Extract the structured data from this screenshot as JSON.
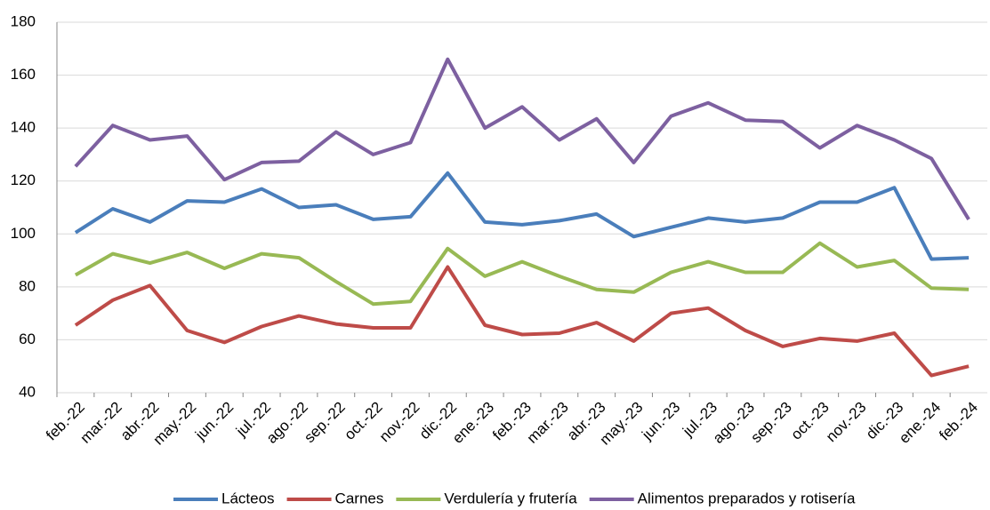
{
  "chart_data": {
    "type": "line",
    "categories": [
      "feb.-22",
      "mar.-22",
      "abr.-22",
      "may.-22",
      "jun.-22",
      "jul.-22",
      "ago.-22",
      "sep.-22",
      "oct.-22",
      "nov.-22",
      "dic.-22",
      "ene.-23",
      "feb.-23",
      "mar.-23",
      "abr.-23",
      "may.-23",
      "jun.-23",
      "jul.-23",
      "ago.-23",
      "sep.-23",
      "oct.-23",
      "nov.-23",
      "dic.-23",
      "ene.-24",
      "feb.-24"
    ],
    "series": [
      {
        "name": "Lácteos",
        "color": "#4a7ebb",
        "values": [
          100.5,
          109.5,
          104.5,
          112.5,
          112,
          117,
          110,
          111,
          105.5,
          106.5,
          123,
          104.5,
          103.5,
          105,
          107.5,
          99,
          102.5,
          106,
          104.5,
          106,
          112,
          112,
          117.5,
          90.5,
          91
        ]
      },
      {
        "name": "Carnes",
        "color": "#be4b48",
        "values": [
          65.5,
          75,
          80.5,
          63.5,
          59,
          65,
          69,
          66,
          64.5,
          64.5,
          87.5,
          65.5,
          62,
          62.5,
          66.5,
          59.5,
          70,
          72,
          63.5,
          57.5,
          60.5,
          59.5,
          62.5,
          46.5,
          50
        ]
      },
      {
        "name": "Verdulería y frutería",
        "color": "#98b954",
        "values": [
          84.5,
          92.5,
          89,
          93,
          87,
          92.5,
          91,
          82,
          73.5,
          74.5,
          94.5,
          84,
          89.5,
          84,
          79,
          78,
          85.5,
          89.5,
          85.5,
          85.5,
          96.5,
          87.5,
          90,
          79.5,
          79
        ]
      },
      {
        "name": "Alimentos preparados y rotisería",
        "color": "#7d60a0",
        "values": [
          125.5,
          141,
          135.5,
          137,
          120.5,
          127,
          127.5,
          138.5,
          130,
          134.5,
          166,
          140,
          148,
          135.5,
          143.5,
          127,
          144.5,
          149.5,
          143,
          142.5,
          132.5,
          141,
          135.5,
          128.5,
          105.5
        ]
      }
    ],
    "ylim": [
      40,
      180
    ],
    "yticks": [
      40,
      60,
      80,
      100,
      120,
      140,
      160,
      180
    ],
    "grid": true,
    "legend": "bottom"
  }
}
